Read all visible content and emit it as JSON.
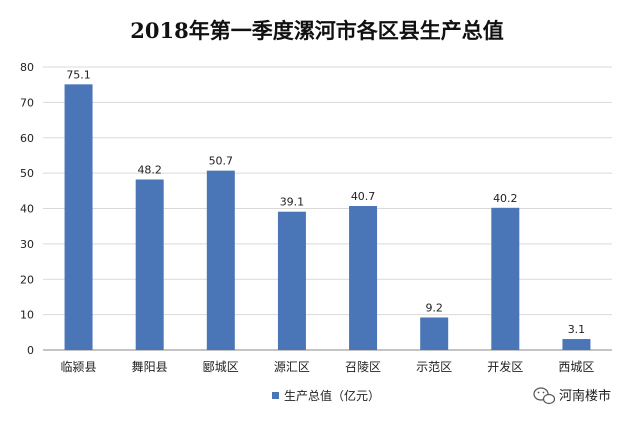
{
  "chart_data": {
    "type": "bar",
    "title": "2018年第一季度漯河市各区县生产总值",
    "categories": [
      "临颍县",
      "舞阳县",
      "郾城区",
      "源汇区",
      "召陵区",
      "示范区",
      "开发区",
      "西城区"
    ],
    "series": [
      {
        "name": "生产总值（亿元）",
        "values": [
          75.1,
          48.2,
          50.7,
          39.1,
          40.7,
          9.2,
          40.2,
          3.1
        ],
        "color": "#4a76b8"
      }
    ],
    "ylim": [
      0,
      80
    ],
    "yticks": [
      0,
      10,
      20,
      30,
      40,
      50,
      60,
      70,
      80
    ],
    "grid": true,
    "legend": "bottom-left",
    "data_labels": true
  },
  "watermark": {
    "brand": "河南楼市",
    "icon": "wechat-icon"
  },
  "colors": {
    "bar": "#4a76b8",
    "grid": "#d9d9d9",
    "axis": "#888888"
  }
}
